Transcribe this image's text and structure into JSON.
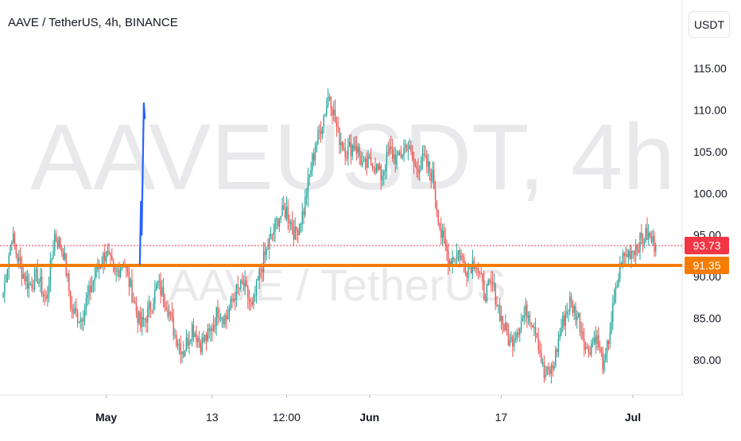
{
  "header": {
    "title": "AAVE / TetherUS, 4h, BINANCE",
    "currency_label": "USDT"
  },
  "watermark": {
    "symbol": "AAVEUSDT, 4h",
    "description": "AAVE / TetherUS"
  },
  "colors": {
    "up": "#26a69a",
    "down": "#ef5350",
    "support": "#f57c00",
    "projection": "#2962ff",
    "last_price": "#f23645"
  },
  "chart_data": {
    "type": "candlestick",
    "timeframe": "4h",
    "ylim": [
      76,
      118
    ],
    "y_ticks": [
      80,
      85,
      90,
      95,
      100,
      105,
      110,
      115
    ],
    "y_tick_labels": [
      "80.00",
      "85.00",
      "90.00",
      "95.00",
      "100.00",
      "105.00",
      "110.00",
      "115.00"
    ],
    "x_tick_labels": [
      "May",
      "13",
      "12:00",
      "Jun",
      "17",
      "Jul"
    ],
    "last_price": {
      "value": 93.73,
      "label": "93.73"
    },
    "support_level": {
      "value": 91.35,
      "label": "91.35"
    },
    "projection_path": [
      [
        95.5,
        91.5
      ],
      [
        96.3,
        99.0
      ],
      [
        96.8,
        95.0
      ],
      [
        98.3,
        110.8
      ],
      [
        99.0,
        109.0
      ]
    ],
    "path_note": "projection_path pairs are [bar index, price]",
    "segments": [
      [
        0,
        88
      ],
      [
        6,
        95
      ],
      [
        12,
        91
      ],
      [
        18,
        89
      ],
      [
        24,
        90
      ],
      [
        30,
        87
      ],
      [
        36,
        95
      ],
      [
        42,
        93
      ],
      [
        48,
        86
      ],
      [
        54,
        85
      ],
      [
        60,
        88
      ],
      [
        66,
        91
      ],
      [
        72,
        93
      ],
      [
        78,
        90
      ],
      [
        84,
        92
      ],
      [
        90,
        88
      ],
      [
        96,
        84
      ],
      [
        102,
        86
      ],
      [
        108,
        89
      ],
      [
        114,
        87
      ],
      [
        120,
        83
      ],
      [
        126,
        81
      ],
      [
        132,
        84
      ],
      [
        138,
        82
      ],
      [
        144,
        83
      ],
      [
        150,
        86
      ],
      [
        156,
        85
      ],
      [
        162,
        88
      ],
      [
        168,
        89
      ],
      [
        174,
        86
      ],
      [
        180,
        91
      ],
      [
        186,
        94
      ],
      [
        192,
        97
      ],
      [
        198,
        98
      ],
      [
        204,
        95
      ],
      [
        210,
        98
      ],
      [
        216,
        104
      ],
      [
        222,
        108
      ],
      [
        228,
        112
      ],
      [
        234,
        107
      ],
      [
        240,
        105
      ],
      [
        246,
        106
      ],
      [
        252,
        103
      ],
      [
        258,
        104
      ],
      [
        264,
        102
      ],
      [
        270,
        105
      ],
      [
        276,
        104
      ],
      [
        282,
        106
      ],
      [
        288,
        103
      ],
      [
        294,
        104
      ],
      [
        300,
        102
      ],
      [
        306,
        95
      ],
      [
        312,
        92
      ],
      [
        318,
        93
      ],
      [
        324,
        91
      ],
      [
        330,
        92
      ],
      [
        336,
        88
      ],
      [
        342,
        89
      ],
      [
        348,
        85
      ],
      [
        354,
        82
      ],
      [
        360,
        84
      ],
      [
        366,
        86
      ],
      [
        372,
        84
      ],
      [
        378,
        78
      ],
      [
        384,
        79
      ],
      [
        390,
        84
      ],
      [
        396,
        87
      ],
      [
        402,
        85
      ],
      [
        408,
        81
      ],
      [
        414,
        83
      ],
      [
        420,
        79
      ],
      [
        426,
        86
      ],
      [
        432,
        92
      ],
      [
        438,
        93
      ],
      [
        444,
        94
      ],
      [
        450,
        95
      ],
      [
        456,
        93.7
      ]
    ]
  }
}
